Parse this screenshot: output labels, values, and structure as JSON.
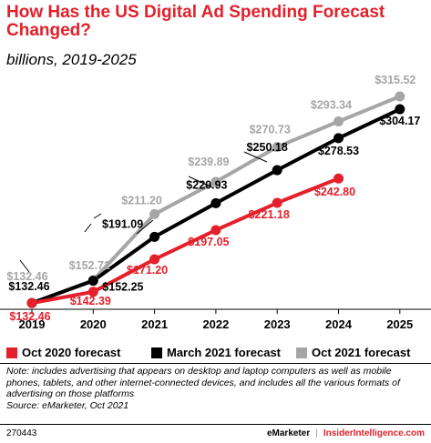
{
  "header": {
    "title": "How Has the US Digital Ad Spending Forecast Changed?",
    "subtitle": "billions, 2019-2025"
  },
  "chart_data": {
    "type": "line",
    "x": [
      "2019",
      "2020",
      "2021",
      "2022",
      "2023",
      "2024",
      "2025"
    ],
    "ylim": [
      110,
      330
    ],
    "grid": false,
    "legend_position": "bottom",
    "series": [
      {
        "name": "Oct 2020 forecast",
        "color": "#e3202b",
        "values": [
          132.46,
          142.39,
          171.2,
          197.05,
          221.18,
          242.8,
          null
        ],
        "labels": [
          "$132.46",
          "$142.39",
          "$171.20",
          "$197.05",
          "$221.18",
          "$242.80",
          null
        ]
      },
      {
        "name": "March 2021 forecast",
        "color": "#000000",
        "values": [
          132.46,
          152.25,
          191.09,
          220.93,
          250.18,
          278.53,
          304.17
        ],
        "labels": [
          "$132.46",
          "$152.25",
          "$191.09",
          "$220.93",
          "$250.18",
          "$278.53",
          "$304.17"
        ]
      },
      {
        "name": "Oct 2021 forecast",
        "color": "#a6a6a6",
        "values": [
          132.46,
          152.71,
          211.2,
          239.89,
          270.73,
          293.34,
          315.52
        ],
        "labels": [
          "$132.46",
          "$152.71",
          "$211.20",
          "$239.89",
          "$270.73",
          "$293.34",
          "$315.52"
        ]
      }
    ]
  },
  "note": "Note: includes advertising that appears on desktop and laptop computers as well as mobile phones, tablets, and other internet-connected devices, and includes all the various formats of advertising on those platforms",
  "source": "Source: eMarketer, Oct 2021",
  "footer": {
    "code": "270443",
    "brand_emarketer": "eMarketer",
    "separator": "|",
    "brand_insider": "InsiderIntelligence.com"
  }
}
